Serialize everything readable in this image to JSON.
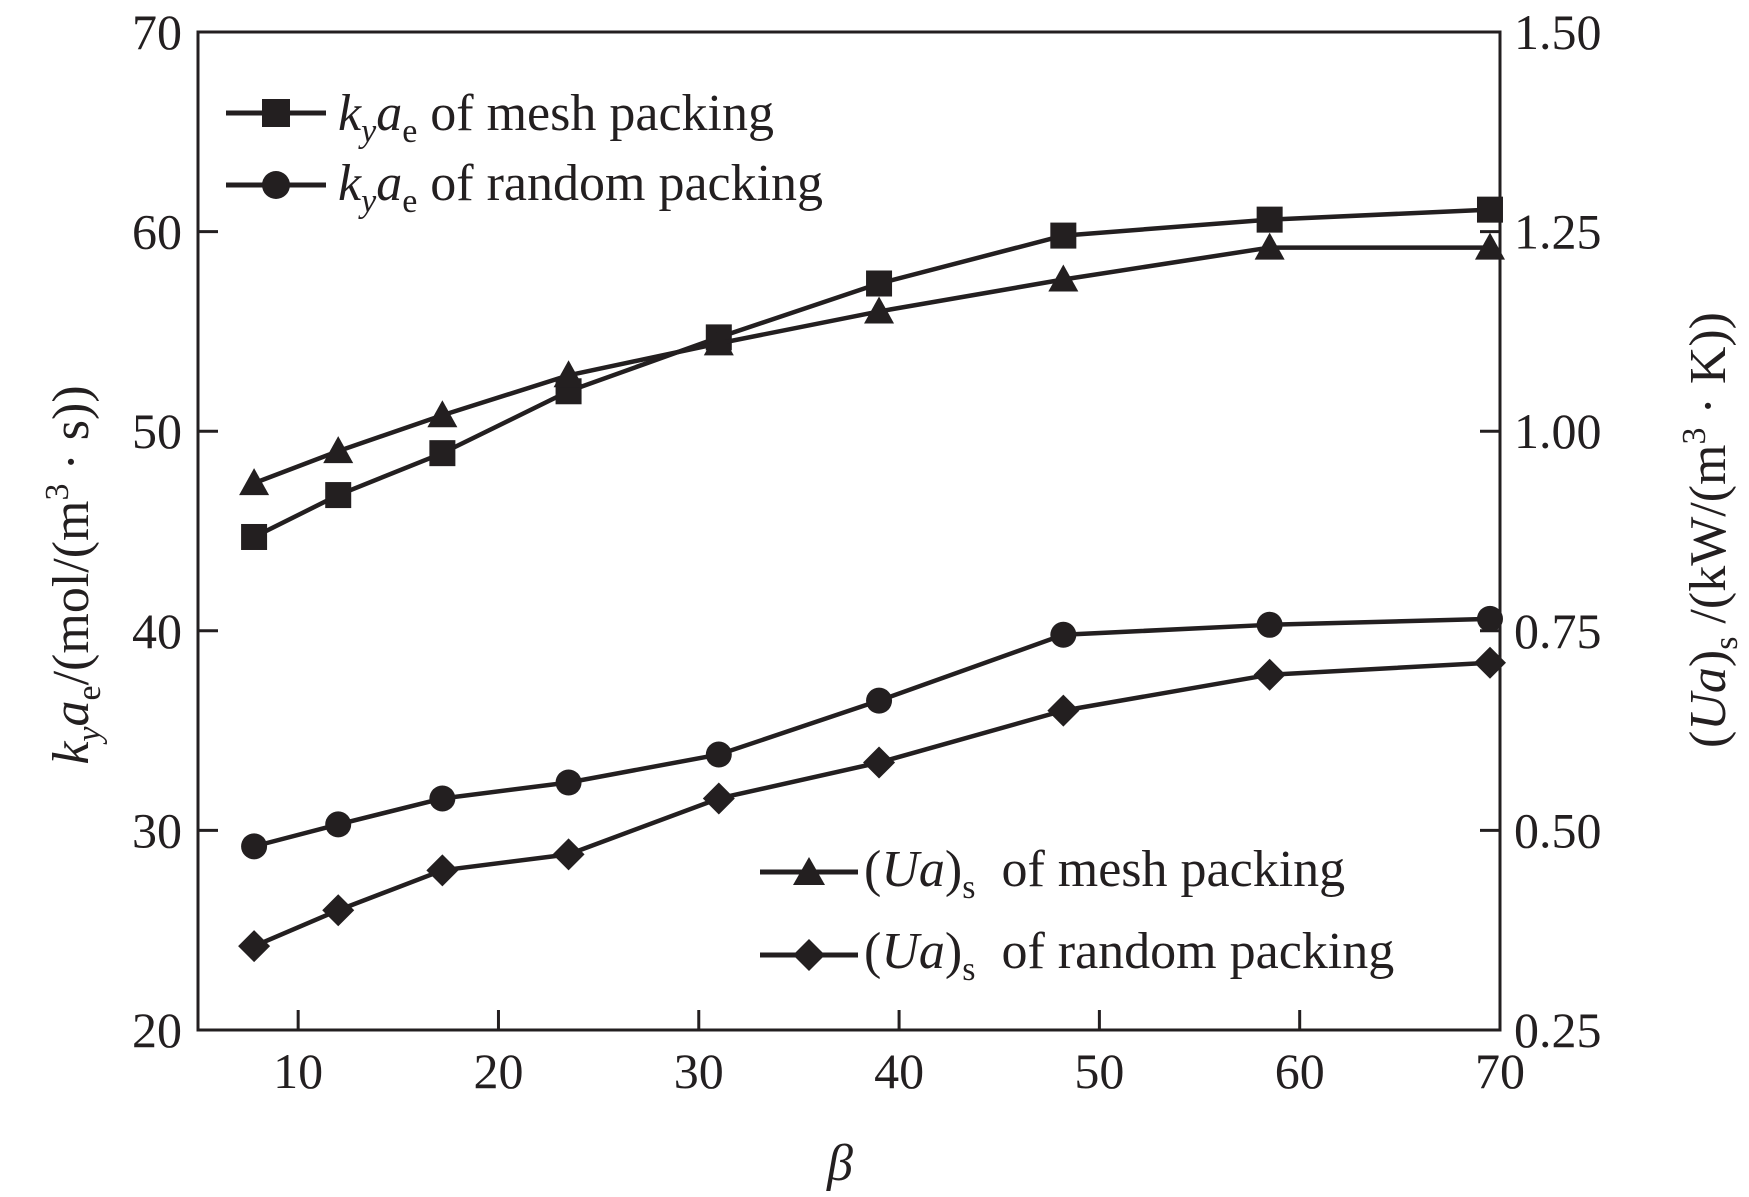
{
  "colors": {
    "ink": "#231f20",
    "background": "#ffffff"
  },
  "chart_data": {
    "type": "line",
    "title": "",
    "xlabel": "β",
    "ylabel_left": "k_y a_e/(mol/(m³·s))",
    "ylabel_right": "(Ua)_s /(kW/(m³·K))",
    "ylabel_left_parts": {
      "k": "k",
      "y": "y",
      "a": "a",
      "e": "e",
      "rest": "/(mol/(m",
      "sup": "3",
      "end": " · s))"
    },
    "ylabel_right_parts": {
      "open": "(",
      "Ua": "Ua",
      "close": ")",
      "s": "s",
      "rest": " /(kW/(m",
      "sup": "3",
      "end": " · K))"
    },
    "xlim": [
      5,
      70
    ],
    "ylim_left": [
      20,
      70
    ],
    "ylim_right": [
      0.25,
      1.5
    ],
    "xticks": [
      10,
      20,
      30,
      40,
      50,
      60,
      70
    ],
    "yticks_left": [
      20,
      30,
      40,
      50,
      60,
      70
    ],
    "yticks_right": [
      "0.25",
      "0.50",
      "0.75",
      "1.00",
      "1.25",
      "1.50"
    ],
    "grid": false,
    "series": [
      {
        "name": "k_y a_e of mesh packing",
        "axis": "left",
        "marker": "square",
        "x": [
          7.8,
          12.0,
          17.2,
          23.5,
          31.0,
          39.0,
          48.2,
          58.5,
          69.5
        ],
        "y": [
          44.7,
          46.8,
          48.9,
          52.0,
          54.7,
          57.4,
          59.8,
          60.6,
          61.1
        ]
      },
      {
        "name": "k_y a_e of random packing",
        "axis": "left",
        "marker": "circle",
        "x": [
          7.8,
          12.0,
          17.2,
          23.5,
          31.0,
          39.0,
          48.2,
          58.5,
          69.5
        ],
        "y": [
          29.2,
          30.3,
          31.6,
          32.4,
          33.8,
          36.5,
          39.8,
          40.3,
          40.6
        ]
      },
      {
        "name": "(Ua)_s of mesh packing",
        "axis": "right",
        "marker": "triangle",
        "x": [
          7.8,
          12.0,
          17.2,
          23.5,
          31.0,
          39.0,
          48.2,
          58.5,
          69.5
        ],
        "y": [
          0.935,
          0.975,
          1.02,
          1.07,
          1.11,
          1.15,
          1.19,
          1.23,
          1.23
        ]
      },
      {
        "name": "(Ua)_s of random packing",
        "axis": "right",
        "marker": "diamond",
        "x": [
          7.8,
          12.0,
          17.2,
          23.5,
          31.0,
          39.0,
          48.2,
          58.5,
          69.5
        ],
        "y": [
          0.355,
          0.4,
          0.45,
          0.47,
          0.54,
          0.585,
          0.65,
          0.695,
          0.71
        ]
      }
    ],
    "legend_top": {
      "placement": "top-left",
      "items": [
        {
          "k": "k",
          "y": "y",
          "a": "a",
          "e": "e",
          "text": " of mesh packing"
        },
        {
          "k": "k",
          "y": "y",
          "a": "a",
          "e": "e",
          "text": " of random packing"
        }
      ]
    },
    "legend_bottom": {
      "placement": "bottom-right",
      "items": [
        {
          "open": "(",
          "Ua": "Ua",
          "close": ")",
          "s": "s",
          "text": "  of mesh packing"
        },
        {
          "open": "(",
          "Ua": "Ua",
          "close": ")",
          "s": "s",
          "text": "  of random packing"
        }
      ]
    }
  }
}
